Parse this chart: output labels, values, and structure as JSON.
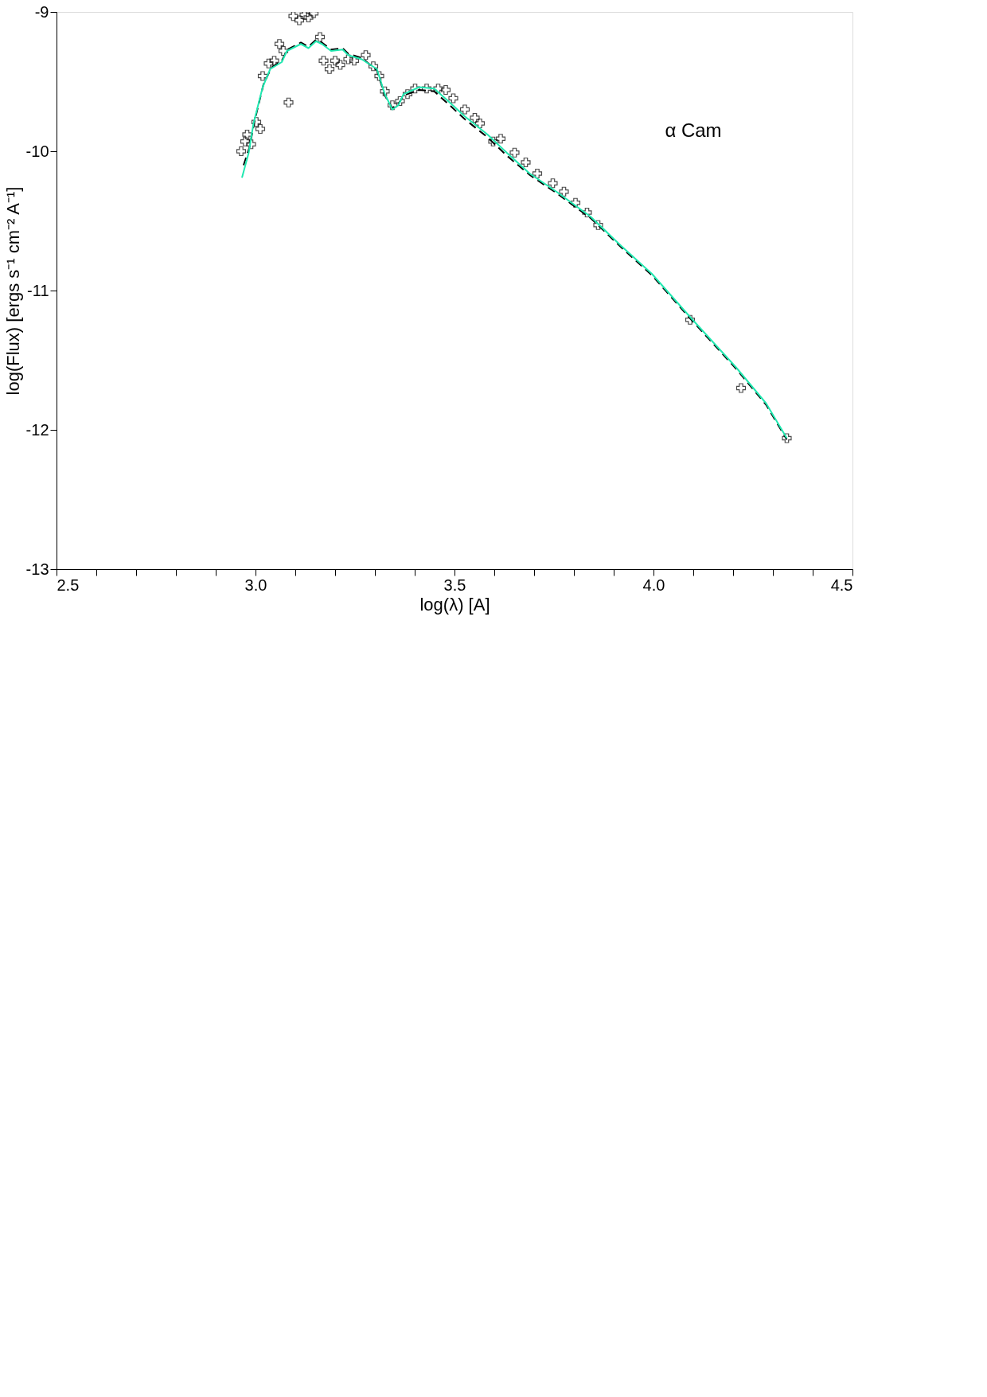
{
  "chart_data": {
    "type": "scatter",
    "xlabel": "log(λ) [A]",
    "ylabel": "log(Flux) [ergs s⁻¹ cm⁻² A⁻¹]",
    "xlim": [
      2.5,
      4.5
    ],
    "ylim": [
      -13,
      -9
    ],
    "xticks": [
      {
        "value": 2.5,
        "label": "2.5"
      },
      {
        "value": 2.6,
        "label": null
      },
      {
        "value": 2.7,
        "label": null
      },
      {
        "value": 2.8,
        "label": null
      },
      {
        "value": 2.9,
        "label": null
      },
      {
        "value": 3.0,
        "label": "3.0"
      },
      {
        "value": 3.1,
        "label": null
      },
      {
        "value": 3.2,
        "label": null
      },
      {
        "value": 3.3,
        "label": null
      },
      {
        "value": 3.4,
        "label": null
      },
      {
        "value": 3.5,
        "label": "3.5"
      },
      {
        "value": 3.6,
        "label": null
      },
      {
        "value": 3.7,
        "label": null
      },
      {
        "value": 3.8,
        "label": null
      },
      {
        "value": 3.9,
        "label": null
      },
      {
        "value": 4.0,
        "label": "4.0"
      },
      {
        "value": 4.1,
        "label": null
      },
      {
        "value": 4.2,
        "label": null
      },
      {
        "value": 4.3,
        "label": null
      },
      {
        "value": 4.4,
        "label": null
      },
      {
        "value": 4.5,
        "label": "4.5"
      }
    ],
    "yticks": [
      -13,
      -12,
      -11,
      -10,
      -9
    ],
    "grid": false,
    "annotations": [
      "α Cam"
    ],
    "series": [
      {
        "marker": "cross",
        "color": "#000000",
        "x": [
          2.964,
          2.974,
          2.979,
          2.989,
          3.002,
          3.012,
          3.018,
          3.033,
          3.047,
          3.06,
          3.07,
          3.083,
          3.095,
          3.11,
          3.123,
          3.133,
          3.146,
          3.162,
          3.171,
          3.186,
          3.2,
          3.213,
          3.233,
          3.248,
          3.277,
          3.296,
          3.311,
          3.325,
          3.344,
          3.363,
          3.382,
          3.401,
          3.43,
          3.459,
          3.478,
          3.497,
          3.526,
          3.551,
          3.564,
          3.597,
          3.616,
          3.651,
          3.679,
          3.708,
          3.747,
          3.775,
          3.804,
          3.833,
          3.861,
          4.092,
          4.22,
          4.335
        ],
        "values": [
          -10.0,
          -9.93,
          -9.88,
          -9.95,
          -9.79,
          -9.84,
          -9.46,
          -9.37,
          -9.35,
          -9.23,
          -9.28,
          -9.65,
          -9.03,
          -9.06,
          -9.02,
          -9.04,
          -9.01,
          -9.18,
          -9.35,
          -9.41,
          -9.35,
          -9.38,
          -9.34,
          -9.35,
          -9.31,
          -9.39,
          -9.46,
          -9.57,
          -9.67,
          -9.64,
          -9.59,
          -9.55,
          -9.55,
          -9.55,
          -9.56,
          -9.62,
          -9.7,
          -9.76,
          -9.8,
          -9.93,
          -9.91,
          -10.01,
          -10.08,
          -10.16,
          -10.23,
          -10.29,
          -10.37,
          -10.44,
          -10.53,
          -11.21,
          -11.7,
          -12.06
        ]
      },
      {
        "type": "line",
        "line_style": "dashed",
        "color": "#000000",
        "x": [
          2.97,
          2.985,
          2.998,
          3.02,
          3.04,
          3.066,
          3.08,
          3.114,
          3.133,
          3.152,
          3.167,
          3.19,
          3.219,
          3.233,
          3.267,
          3.305,
          3.325,
          3.344,
          3.359,
          3.372,
          3.411,
          3.449,
          3.488,
          3.526,
          3.583,
          3.631,
          3.689,
          3.756,
          3.842,
          3.919,
          3.996,
          4.092,
          4.207,
          4.283,
          4.335
        ],
        "values": [
          -10.1,
          -9.97,
          -9.78,
          -9.52,
          -9.4,
          -9.35,
          -9.27,
          -9.22,
          -9.25,
          -9.2,
          -9.22,
          -9.27,
          -9.26,
          -9.3,
          -9.33,
          -9.42,
          -9.6,
          -9.69,
          -9.66,
          -9.6,
          -9.56,
          -9.57,
          -9.67,
          -9.77,
          -9.9,
          -10.03,
          -10.17,
          -10.3,
          -10.48,
          -10.69,
          -10.89,
          -11.2,
          -11.56,
          -11.82,
          -12.07
        ]
      },
      {
        "type": "line",
        "line_style": "solid",
        "color": "#20e8b0",
        "x": [
          2.966,
          2.983,
          2.995,
          3.018,
          3.037,
          3.066,
          3.079,
          3.114,
          3.133,
          3.152,
          3.167,
          3.19,
          3.219,
          3.233,
          3.267,
          3.305,
          3.325,
          3.344,
          3.359,
          3.372,
          3.411,
          3.449,
          3.488,
          3.526,
          3.583,
          3.631,
          3.689,
          3.756,
          3.842,
          3.919,
          3.996,
          4.092,
          4.207,
          4.283,
          4.335
        ],
        "values": [
          -10.19,
          -10.01,
          -9.8,
          -9.54,
          -9.41,
          -9.36,
          -9.28,
          -9.23,
          -9.26,
          -9.21,
          -9.23,
          -9.28,
          -9.27,
          -9.31,
          -9.34,
          -9.41,
          -9.59,
          -9.7,
          -9.67,
          -9.59,
          -9.54,
          -9.55,
          -9.65,
          -9.75,
          -9.88,
          -10.01,
          -10.16,
          -10.29,
          -10.47,
          -10.68,
          -10.88,
          -11.19,
          -11.55,
          -11.81,
          -12.06
        ]
      }
    ]
  }
}
